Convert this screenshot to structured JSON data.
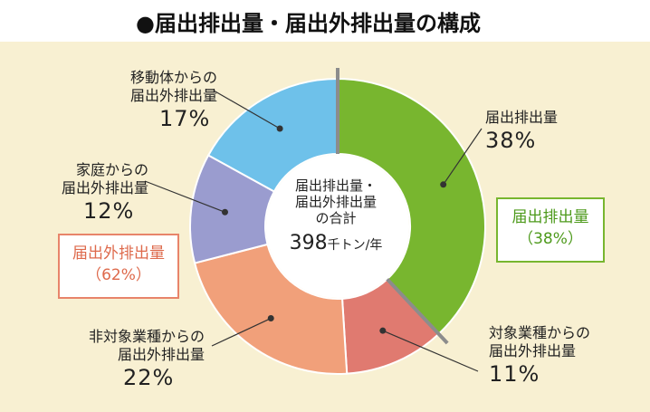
{
  "title": "●届出排出量・届出外排出量の構成",
  "center": {
    "line1": "届出排出量・",
    "line2": "届出外排出量",
    "line3": "の合計",
    "total": "398",
    "unit": "千トン/年"
  },
  "boxes": {
    "reported": {
      "label": "届出排出量",
      "pct": "（38%）"
    },
    "unreported": {
      "label": "届出外排出量",
      "pct": "（62%）"
    }
  },
  "chart_data": {
    "type": "donut",
    "title": "届出排出量・届出外排出量の構成",
    "total": 398,
    "total_unit": "千トン/年",
    "segments": [
      {
        "line1": "届出排出量",
        "line2": "",
        "value": 38,
        "pct_label": "38%",
        "color": "#78b62f"
      },
      {
        "line1": "対象業種からの",
        "line2": "届出外排出量",
        "value": 11,
        "pct_label": "11%",
        "color": "#e07a70"
      },
      {
        "line1": "非対象業種からの",
        "line2": "届出外排出量",
        "value": 22,
        "pct_label": "22%",
        "color": "#f1a07a"
      },
      {
        "line1": "家庭からの",
        "line2": "届出外排出量",
        "value": 12,
        "pct_label": "12%",
        "color": "#9a9ccf"
      },
      {
        "line1": "移動体からの",
        "line2": "届出外排出量",
        "value": 17,
        "pct_label": "17%",
        "color": "#6ec1ea"
      }
    ]
  }
}
